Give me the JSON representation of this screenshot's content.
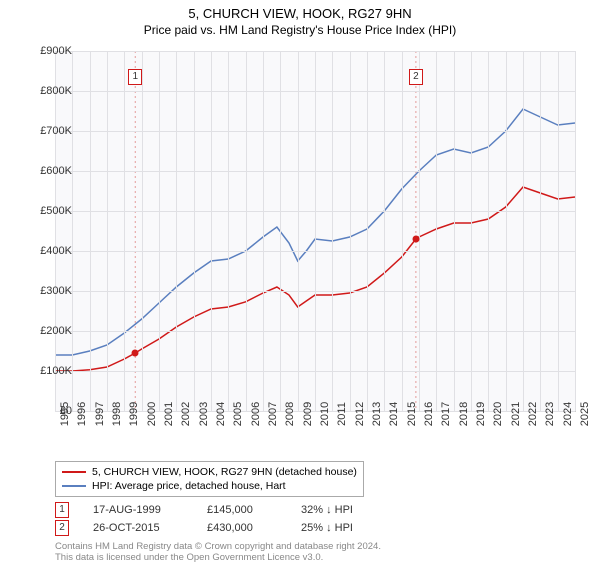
{
  "title": "5, CHURCH VIEW, HOOK, RG27 9HN",
  "subtitle": "Price paid vs. HM Land Registry's House Price Index (HPI)",
  "chart": {
    "type": "line",
    "background_color": "#f9f9fb",
    "grid_color": "#e0e0e4",
    "y": {
      "min": 0,
      "max": 900000,
      "step": 100000,
      "labels": [
        "£0",
        "£100K",
        "£200K",
        "£300K",
        "£400K",
        "£500K",
        "£600K",
        "£700K",
        "£800K",
        "£900K"
      ]
    },
    "x": {
      "years": [
        1995,
        1996,
        1997,
        1998,
        1999,
        2000,
        2001,
        2002,
        2003,
        2004,
        2005,
        2006,
        2007,
        2008,
        2009,
        2010,
        2011,
        2012,
        2013,
        2014,
        2015,
        2016,
        2017,
        2018,
        2019,
        2020,
        2021,
        2022,
        2023,
        2024,
        2025
      ]
    },
    "series": [
      {
        "name": "price_paid",
        "color": "#d01919",
        "line_width": 1.5,
        "points": [
          [
            1995,
            100000
          ],
          [
            1996,
            100000
          ],
          [
            1997,
            103000
          ],
          [
            1998,
            110000
          ],
          [
            1999,
            130000
          ],
          [
            1999.63,
            145000
          ],
          [
            2000,
            155000
          ],
          [
            2001,
            180000
          ],
          [
            2002,
            210000
          ],
          [
            2003,
            235000
          ],
          [
            2004,
            255000
          ],
          [
            2005,
            260000
          ],
          [
            2006,
            273000
          ],
          [
            2007,
            295000
          ],
          [
            2007.8,
            310000
          ],
          [
            2008.5,
            290000
          ],
          [
            2009,
            260000
          ],
          [
            2009.5,
            275000
          ],
          [
            2010,
            290000
          ],
          [
            2011,
            290000
          ],
          [
            2012,
            295000
          ],
          [
            2013,
            310000
          ],
          [
            2014,
            345000
          ],
          [
            2015,
            385000
          ],
          [
            2015.82,
            430000
          ],
          [
            2016,
            435000
          ],
          [
            2017,
            455000
          ],
          [
            2018,
            470000
          ],
          [
            2019,
            470000
          ],
          [
            2020,
            480000
          ],
          [
            2021,
            510000
          ],
          [
            2022,
            560000
          ],
          [
            2023,
            545000
          ],
          [
            2024,
            530000
          ],
          [
            2025,
            535000
          ]
        ]
      },
      {
        "name": "hpi",
        "color": "#5a7fbf",
        "line_width": 1.5,
        "points": [
          [
            1995,
            140000
          ],
          [
            1996,
            140000
          ],
          [
            1997,
            150000
          ],
          [
            1998,
            165000
          ],
          [
            1999,
            195000
          ],
          [
            2000,
            230000
          ],
          [
            2001,
            270000
          ],
          [
            2002,
            310000
          ],
          [
            2003,
            345000
          ],
          [
            2004,
            375000
          ],
          [
            2005,
            380000
          ],
          [
            2006,
            400000
          ],
          [
            2007,
            435000
          ],
          [
            2007.8,
            460000
          ],
          [
            2008.5,
            420000
          ],
          [
            2009,
            375000
          ],
          [
            2009.5,
            400000
          ],
          [
            2010,
            430000
          ],
          [
            2011,
            425000
          ],
          [
            2012,
            435000
          ],
          [
            2013,
            455000
          ],
          [
            2014,
            500000
          ],
          [
            2015,
            555000
          ],
          [
            2016,
            600000
          ],
          [
            2017,
            640000
          ],
          [
            2018,
            655000
          ],
          [
            2019,
            645000
          ],
          [
            2020,
            660000
          ],
          [
            2021,
            700000
          ],
          [
            2022,
            755000
          ],
          [
            2023,
            735000
          ],
          [
            2024,
            715000
          ],
          [
            2025,
            720000
          ]
        ]
      }
    ],
    "markers": [
      {
        "n": "1",
        "year": 1999.63,
        "value": 145000
      },
      {
        "n": "2",
        "year": 2015.82,
        "value": 430000
      }
    ]
  },
  "legend": {
    "items": [
      {
        "color": "#d01919",
        "label": "5, CHURCH VIEW, HOOK, RG27 9HN (detached house)"
      },
      {
        "color": "#5a7fbf",
        "label": "HPI: Average price, detached house, Hart"
      }
    ]
  },
  "transactions": [
    {
      "n": "1",
      "date": "17-AUG-1999",
      "price": "£145,000",
      "delta": "32% ↓ HPI"
    },
    {
      "n": "2",
      "date": "26-OCT-2015",
      "price": "£430,000",
      "delta": "25% ↓ HPI"
    }
  ],
  "footnote": {
    "line1": "Contains HM Land Registry data © Crown copyright and database right 2024.",
    "line2": "This data is licensed under the Open Government Licence v3.0."
  }
}
